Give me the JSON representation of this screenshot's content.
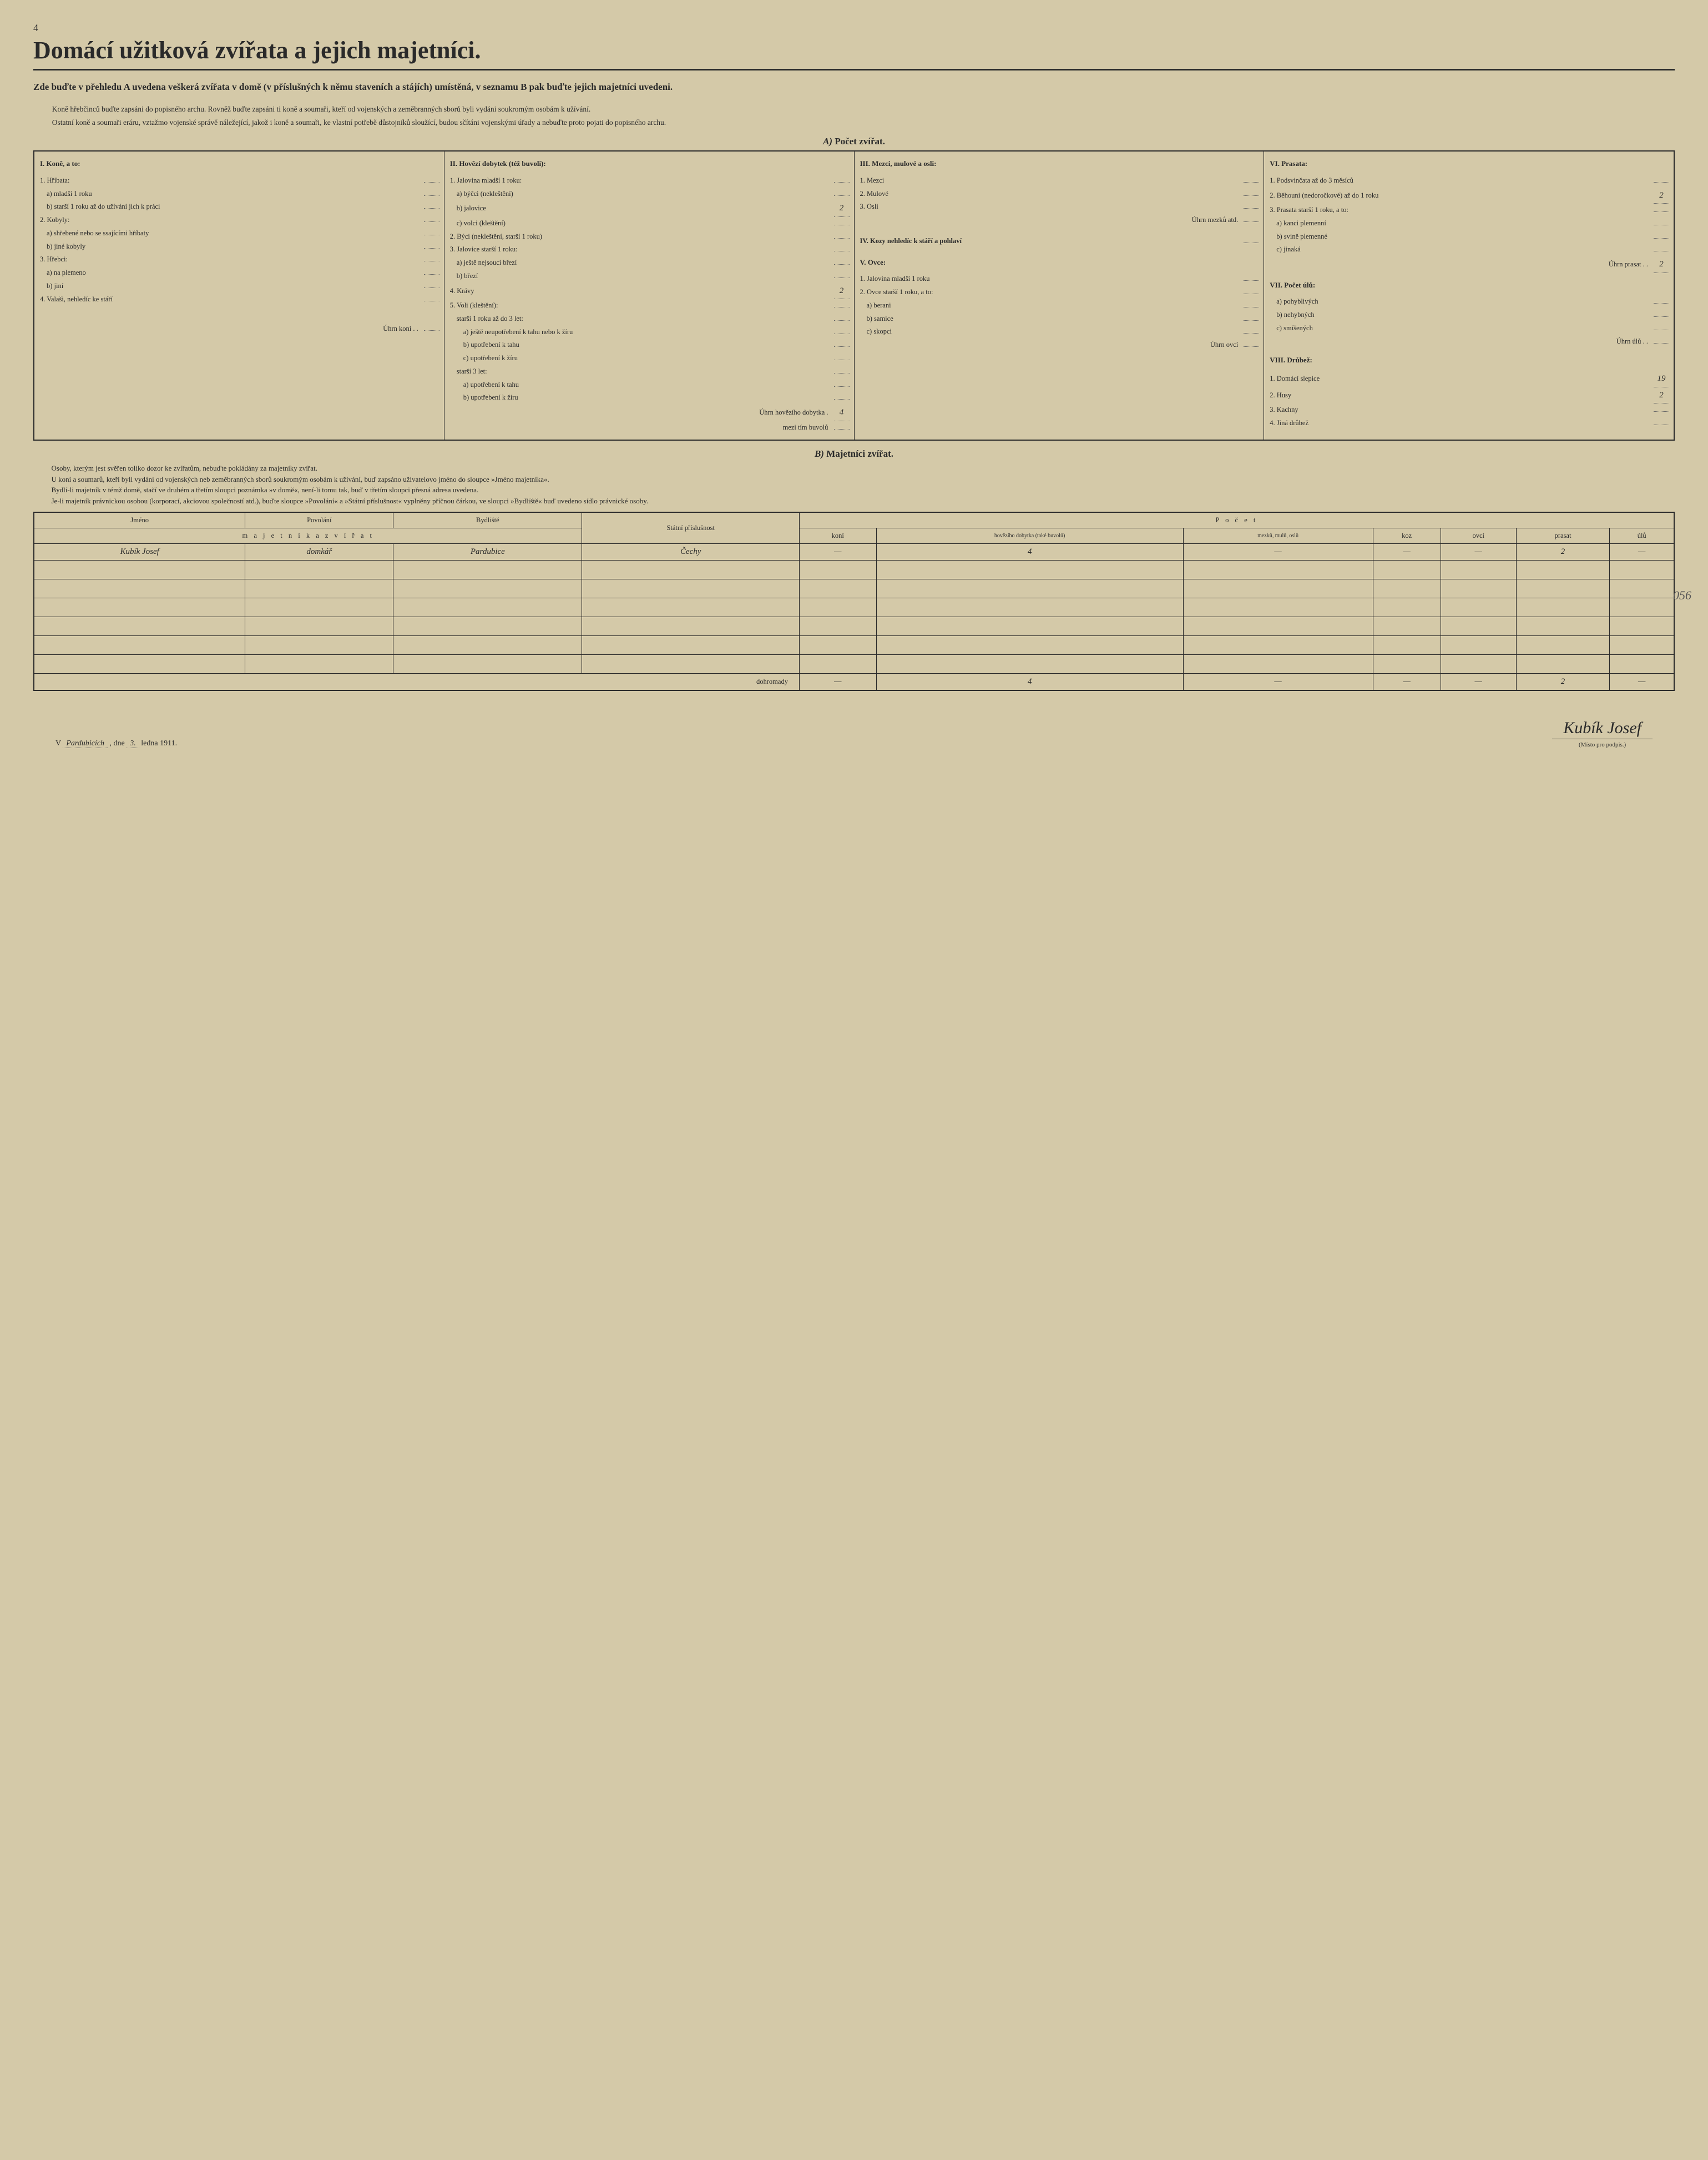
{
  "page_number": "4",
  "title": "Domácí užitková zvířata a jejich majetníci.",
  "subtitle": "Zde buďte v přehledu A uvedena veškerá zvířata v domě (v příslušných k němu staveních a stájích) umístěná, v seznamu B pak buďte jejich majetníci uvedeni.",
  "intro": {
    "p1": "Koně hřebčinců buďte zapsáni do popisného archu. Rovněž buďte zapsáni ti koně a soumaři, kteří od vojenských a zeměbranných sborů byli vydáni soukromým osobám k užívání.",
    "p2": "Ostatní koně a soumaři eráru, vztažmo vojenské správě náležející, jakož i koně a soumaři, ke vlastní potřebě důstojníků sloužící, budou sčítáni vojenskými úřady a nebuďte proto pojati do popisného archu."
  },
  "sectionA": {
    "heading_prefix": "A)",
    "heading": "Počet zvířat.",
    "col1": {
      "head": "I. Koně, a to:",
      "items": [
        {
          "lbl": "1. Hříbata:",
          "val": ""
        },
        {
          "lbl": "a) mladší 1 roku",
          "val": "",
          "ind": 1
        },
        {
          "lbl": "b) starší 1 roku až do užívání jich k práci",
          "val": "",
          "ind": 1
        },
        {
          "lbl": "2. Kobyly:",
          "val": ""
        },
        {
          "lbl": "a) shřebené nebo se ssajícími hříbaty",
          "val": "",
          "ind": 1
        },
        {
          "lbl": "b) jiné kobyly",
          "val": "",
          "ind": 1
        },
        {
          "lbl": "3. Hřebci:",
          "val": ""
        },
        {
          "lbl": "a) na plemeno",
          "val": "",
          "ind": 1
        },
        {
          "lbl": "b) jiní",
          "val": "",
          "ind": 1
        },
        {
          "lbl": "4. Valaši, nehledíc ke stáří",
          "val": ""
        }
      ],
      "sum_lbl": "Úhrn koní . .",
      "sum_val": ""
    },
    "col2": {
      "head": "II. Hovězí dobytek (též buvoli):",
      "items": [
        {
          "lbl": "1. Jalovina mladší 1 roku:",
          "val": ""
        },
        {
          "lbl": "a) býčci (nekleštění)",
          "val": "",
          "ind": 1
        },
        {
          "lbl": "b) jalovice",
          "val": "2",
          "ind": 1
        },
        {
          "lbl": "c) volci (kleštění)",
          "val": "",
          "ind": 1
        },
        {
          "lbl": "2. Býci (nekleštění, starší 1 roku)",
          "val": ""
        },
        {
          "lbl": "3. Jalovice starší 1 roku:",
          "val": ""
        },
        {
          "lbl": "a) ještě nejsoucí březí",
          "val": "",
          "ind": 1
        },
        {
          "lbl": "b) březí",
          "val": "",
          "ind": 1
        },
        {
          "lbl": "4. Krávy",
          "val": "2"
        },
        {
          "lbl": "5. Voli (kleštění):",
          "val": ""
        },
        {
          "lbl": "starší 1 roku až do 3 let:",
          "val": "",
          "ind": 1
        },
        {
          "lbl": "a) ještě neupotřebení k tahu nebo k žíru",
          "val": "",
          "ind": 2
        },
        {
          "lbl": "b) upotřebení k tahu",
          "val": "",
          "ind": 2
        },
        {
          "lbl": "c) upotřebení k žíru",
          "val": "",
          "ind": 2
        },
        {
          "lbl": "starší 3 let:",
          "val": "",
          "ind": 1
        },
        {
          "lbl": "a) upotřebení k tahu",
          "val": "",
          "ind": 2
        },
        {
          "lbl": "b) upotřebení k žíru",
          "val": "",
          "ind": 2
        }
      ],
      "sum_lbl": "Úhrn hovězího dobytka .",
      "sum_val": "4",
      "sum2_lbl": "mezi tím buvolů",
      "sum2_val": ""
    },
    "col3": {
      "head": "III. Mezci, mulové a osli:",
      "items": [
        {
          "lbl": "1. Mezci",
          "val": ""
        },
        {
          "lbl": "2. Mulové",
          "val": ""
        },
        {
          "lbl": "3. Osli",
          "val": ""
        }
      ],
      "sum_lbl": "Úhrn mezků atd.",
      "sum_val": "",
      "head4": "IV. Kozy nehledíc k stáří a pohlaví",
      "val4": "",
      "head5": "V. Ovce:",
      "items5": [
        {
          "lbl": "1. Jalovina mladší 1 roku",
          "val": ""
        },
        {
          "lbl": "2. Ovce starší 1 roku, a to:",
          "val": ""
        },
        {
          "lbl": "a) berani",
          "val": "",
          "ind": 1
        },
        {
          "lbl": "b) samice",
          "val": "",
          "ind": 1
        },
        {
          "lbl": "c) skopci",
          "val": "",
          "ind": 1
        }
      ],
      "sum5_lbl": "Úhrn ovcí",
      "sum5_val": ""
    },
    "col4": {
      "head": "VI. Prasata:",
      "items": [
        {
          "lbl": "1. Podsvinčata až do 3 měsíců",
          "val": ""
        },
        {
          "lbl": "2. Běhouni (nedoročkové) až do 1 roku",
          "val": "2"
        },
        {
          "lbl": "3. Prasata starší 1 roku, a to:",
          "val": ""
        },
        {
          "lbl": "a) kanci plemenní",
          "val": "",
          "ind": 1
        },
        {
          "lbl": "b) svině plemenné",
          "val": "",
          "ind": 1
        },
        {
          "lbl": "c) jinaká",
          "val": "",
          "ind": 1
        }
      ],
      "sum_lbl": "Úhrn prasat . .",
      "sum_val": "2",
      "head7": "VII. Počet úlů:",
      "items7": [
        {
          "lbl": "a) pohyblivých",
          "val": "",
          "ind": 1
        },
        {
          "lbl": "b) nehybných",
          "val": "",
          "ind": 1
        },
        {
          "lbl": "c) smíšených",
          "val": "",
          "ind": 1
        }
      ],
      "sum7_lbl": "Úhrn úlů . .",
      "sum7_val": "",
      "head8": "VIII. Drůbež:",
      "items8": [
        {
          "lbl": "1. Domácí slepice",
          "val": "19"
        },
        {
          "lbl": "2. Husy",
          "val": "2"
        },
        {
          "lbl": "3. Kachny",
          "val": ""
        },
        {
          "lbl": "4. Jiná drůbež",
          "val": ""
        }
      ]
    }
  },
  "sectionB": {
    "heading_prefix": "B)",
    "heading": "Majetníci zvířat.",
    "p1": "Osoby, kterým jest svěřen toliko dozor ke zvířatům, nebuďte pokládány za majetníky zvířat.",
    "p2": "U koní a soumarů, kteří byli vydáni od vojenských neb zeměbranných sborů soukromým osobám k užívání, buď zapsáno uživatelovo jméno do sloupce »Jméno majetníka«.",
    "p3": "Bydlí-li majetník v témž domě, stačí ve druhém a třetím sloupci poznámka »v domě«, není-li tomu tak, buď v třetím sloupci přesná adresa uvedena.",
    "p4": "Je-li majetník právnickou osobou (korporací, akciovou společností atd.), buďte sloupce »Povolání« a »Státní příslušnost« vyplněny příčnou čárkou, ve sloupci »Bydliště« buď uvedeno sídlo právnické osoby.",
    "table": {
      "head_jmeno": "Jméno",
      "head_povolani": "Povolání",
      "head_bydliste": "Bydliště",
      "head_statni": "Státní příslušnost",
      "head_pocet": "P o č e t",
      "head_majetnik": "m a j e t n í k a   z v í ř a t",
      "sub": {
        "koni": "koní",
        "hovezi": "hovězího dobytka (také buvolů)",
        "mezku": "mezků, mulů, oslů",
        "koz": "koz",
        "ovci": "ovcí",
        "prasat": "prasat",
        "ulu": "úlů"
      },
      "row1": {
        "jmeno": "Kubík Josef",
        "povolani": "domkář",
        "bydliste": "Pardubice",
        "statni": "Čechy",
        "koni": "—",
        "hovezi": "4",
        "mezku": "—",
        "koz": "—",
        "ovci": "—",
        "prasat": "2",
        "ulu": "—"
      },
      "sum_label": "dohromady",
      "sum": {
        "koni": "—",
        "hovezi": "4",
        "mezku": "—",
        "koz": "—",
        "ovci": "—",
        "prasat": "2",
        "ulu": "—"
      }
    }
  },
  "footer": {
    "place_prefix": "V",
    "place": "Pardubicích",
    "dne": ", dne",
    "day": "3.",
    "month_year": "ledna 1911.",
    "signature": "Kubík Josef",
    "sig_caption": "(Místo pro podpis.)"
  },
  "margin_note": "056"
}
